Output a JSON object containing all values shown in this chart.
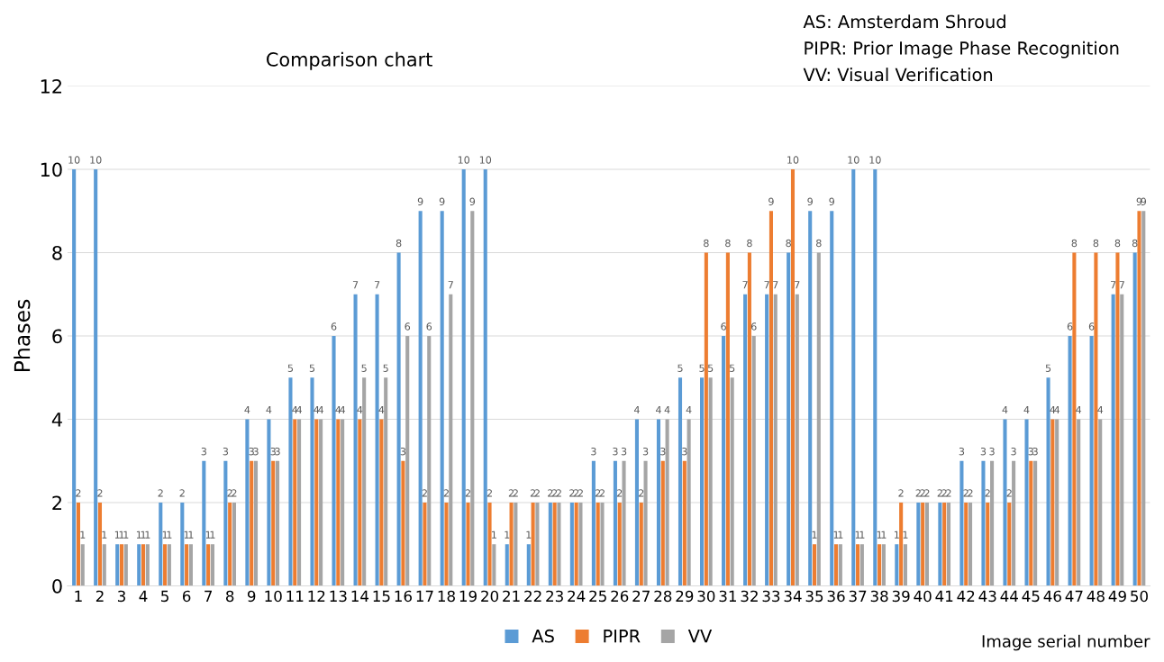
{
  "chart_data": {
    "type": "bar",
    "title": "Comparison chart",
    "xlabel": "Image serial number",
    "ylabel": "Phases",
    "categories": [
      "1",
      "2",
      "3",
      "4",
      "5",
      "6",
      "7",
      "8",
      "9",
      "10",
      "11",
      "12",
      "13",
      "14",
      "15",
      "16",
      "17",
      "18",
      "19",
      "20",
      "21",
      "22",
      "23",
      "24",
      "25",
      "26",
      "27",
      "28",
      "29",
      "30",
      "31",
      "32",
      "33",
      "34",
      "35",
      "36",
      "37",
      "38",
      "39",
      "40",
      "41",
      "42",
      "43",
      "44",
      "45",
      "46",
      "47",
      "48",
      "49",
      "50"
    ],
    "series": [
      {
        "name": "AS",
        "color": "#5b9bd5",
        "values": [
          10,
          10,
          1,
          1,
          2,
          2,
          3,
          3,
          4,
          4,
          5,
          5,
          6,
          7,
          7,
          8,
          9,
          9,
          10,
          10,
          1,
          1,
          2,
          2,
          3,
          3,
          4,
          4,
          5,
          5,
          6,
          7,
          7,
          8,
          9,
          9,
          10,
          10,
          1,
          2,
          2,
          3,
          3,
          4,
          4,
          5,
          6,
          6,
          7,
          8
        ]
      },
      {
        "name": "PIPR",
        "color": "#ed7d31",
        "values": [
          2,
          2,
          1,
          1,
          1,
          1,
          1,
          2,
          3,
          3,
          4,
          4,
          4,
          4,
          4,
          3,
          2,
          2,
          2,
          2,
          2,
          2,
          2,
          2,
          2,
          2,
          2,
          3,
          3,
          8,
          8,
          8,
          9,
          10,
          1,
          1,
          1,
          1,
          2,
          2,
          2,
          2,
          2,
          2,
          3,
          4,
          8,
          8,
          8,
          9
        ]
      },
      {
        "name": "VV",
        "color": "#a5a5a5",
        "values": [
          1,
          1,
          1,
          1,
          1,
          1,
          1,
          2,
          3,
          3,
          4,
          4,
          4,
          5,
          5,
          6,
          6,
          7,
          9,
          1,
          2,
          2,
          2,
          2,
          2,
          3,
          3,
          4,
          4,
          5,
          5,
          6,
          7,
          7,
          8,
          1,
          1,
          1,
          1,
          2,
          2,
          2,
          3,
          3,
          3,
          4,
          4,
          4,
          7,
          9
        ]
      }
    ],
    "ylim": [
      0,
      12
    ],
    "yticks": [
      0,
      2,
      4,
      6,
      8,
      10,
      12
    ],
    "grid": "y",
    "legend": "bottom",
    "data_labels": true,
    "annotations": [
      "AS: Amsterdam Shroud",
      "PIPR: Prior Image Phase Recognition",
      "VV: Visual Verification"
    ]
  }
}
